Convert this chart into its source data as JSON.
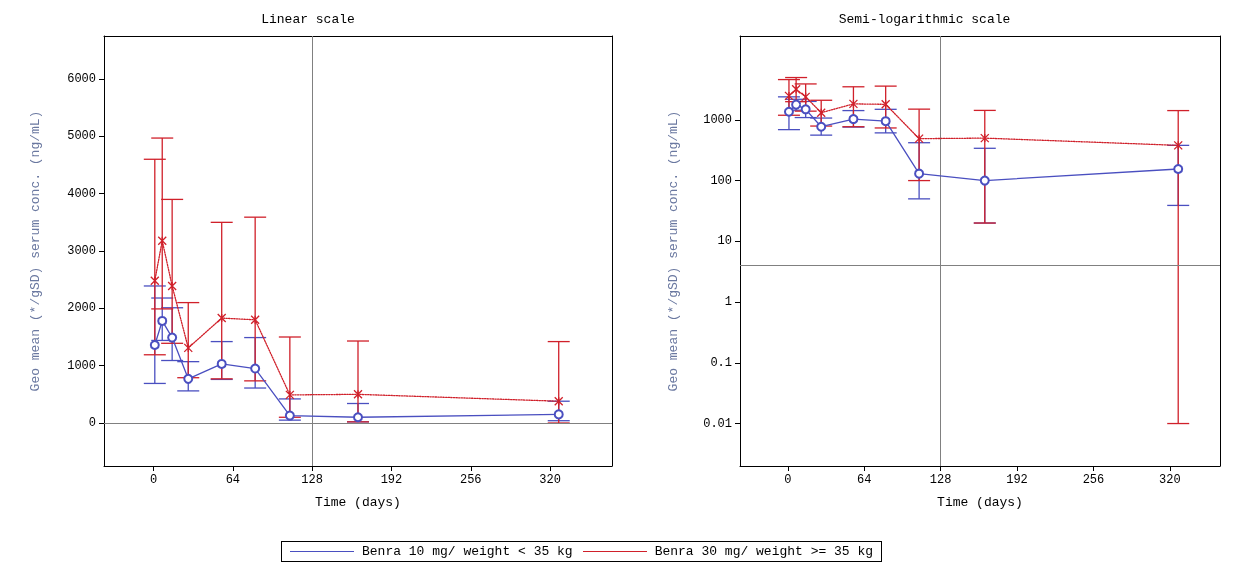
{
  "chart_data": [
    {
      "type": "line",
      "title": "Linear scale",
      "xlabel": "Time (days)",
      "ylabel": "Geo mean (*/gSD) serum conc. (ng/mL)",
      "x": [
        1,
        7,
        15,
        28,
        55,
        82,
        110,
        165,
        327
      ],
      "xlim": [
        -40,
        370
      ],
      "xticks": [
        0,
        64,
        128,
        192,
        256,
        320
      ],
      "ylim": [
        -750,
        6750
      ],
      "yticks": [
        0,
        1000,
        2000,
        3000,
        4000,
        5000,
        6000
      ],
      "grid": false,
      "legend": "bottom",
      "series": [
        {
          "name": "Benra 10 mg/ weight < 35 kg",
          "color": "#4a4fc0",
          "marker": "circle",
          "line_style": "solid",
          "values": [
            1360,
            1780,
            1490,
            770,
            1030,
            950,
            130,
            100,
            150
          ],
          "errors": [
            [
              690,
              2390
            ],
            [
              1440,
              2180
            ],
            [
              1090,
              2010
            ],
            [
              560,
              1070
            ],
            [
              760,
              1420
            ],
            [
              610,
              1490
            ],
            [
              50,
              420
            ],
            [
              20,
              340
            ],
            [
              40,
              380
            ]
          ]
        },
        {
          "name": "Benra 30 mg/ weight >= 35 kg",
          "color": "#d0202a",
          "marker": "cross",
          "line_style": "dotted",
          "values": [
            2480,
            3180,
            2390,
            1310,
            1830,
            1800,
            490,
            500,
            380
          ],
          "errors": [
            [
              1190,
              4600
            ],
            [
              1990,
              4970
            ],
            [
              1390,
              3900
            ],
            [
              790,
              2100
            ],
            [
              770,
              3500
            ],
            [
              735,
              3590
            ],
            [
              100,
              1500
            ],
            [
              20,
              1430
            ],
            [
              0.01,
              1420
            ]
          ]
        }
      ],
      "ref_lines": [
        {
          "axis": "x",
          "value": 128,
          "color": "#808080"
        },
        {
          "axis": "y",
          "value": 0,
          "color": "#808080"
        }
      ]
    },
    {
      "type": "line",
      "title": "Semi-logarithmic scale",
      "xlabel": "Time (days)",
      "ylabel": "Geo mean (*/gSD) serum conc. (ng/mL)",
      "x": [
        1,
        7,
        15,
        28,
        55,
        82,
        110,
        165,
        327
      ],
      "xlim": [
        -40,
        362
      ],
      "xticks": [
        0,
        64,
        128,
        192,
        256,
        320
      ],
      "log": "y",
      "ylim": [
        0.002,
        24000
      ],
      "yticks": [
        0.01,
        0.1,
        1,
        10,
        100,
        1000
      ],
      "grid": false,
      "series": [
        {
          "color": "#4a4fc0",
          "marker": "circle",
          "line_style": "solid",
          "values": [
            1360,
            1780,
            1490,
            770,
            1030,
            950,
            130,
            100,
            155
          ],
          "errors": [
            [
              690,
              2390
            ],
            [
              1440,
              2180
            ],
            [
              1090,
              2010
            ],
            [
              560,
              1070
            ],
            [
              760,
              1420
            ],
            [
              610,
              1490
            ],
            [
              50,
              420
            ],
            [
              20,
              340
            ],
            [
              39,
              380
            ]
          ]
        },
        {
          "color": "#d0202a",
          "marker": "cross",
          "line_style": "dotted",
          "values": [
            2480,
            3180,
            2390,
            1310,
            1830,
            1800,
            490,
            500,
            380
          ],
          "errors": [
            [
              1190,
              4600
            ],
            [
              1990,
              4970
            ],
            [
              1390,
              3900
            ],
            [
              790,
              2100
            ],
            [
              770,
              3500
            ],
            [
              735,
              3590
            ],
            [
              100,
              1500
            ],
            [
              20,
              1430
            ],
            [
              0.01,
              1420
            ]
          ]
        }
      ],
      "ref_lines": [
        {
          "axis": "x",
          "value": 128,
          "color": "#808080"
        },
        {
          "axis": "y",
          "value": 4,
          "color": "#808080"
        }
      ]
    }
  ]
}
